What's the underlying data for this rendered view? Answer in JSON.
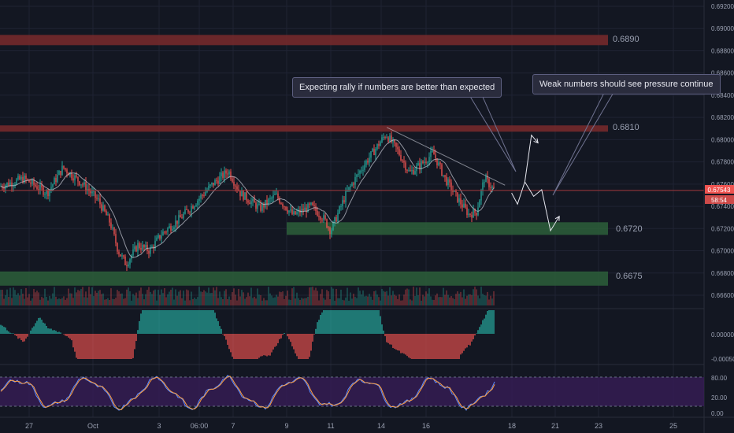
{
  "colors": {
    "background": "#131722",
    "grid": "#1f2333",
    "bull": "#26a69a",
    "bear": "#ef5350",
    "resistance_zone": "#7a2a2c",
    "support_zone": "#2d5f3a",
    "current_price_line": "#a33a3e",
    "stoch_band": "#3a1d5a",
    "stoch_k": "#5b8cff",
    "stoch_d": "#ff9f40"
  },
  "callouts": {
    "rally": "Expecting rally if numbers are better than expected",
    "pressure": "Weak numbers should see pressure continue"
  },
  "levels": {
    "l1": "0.6890",
    "l2": "0.6810",
    "l3": "0.6720",
    "l4": "0.6675"
  },
  "price_scale": [
    "0.69200",
    "0.69000",
    "0.68800",
    "0.68600",
    "0.68400",
    "0.68200",
    "0.68000",
    "0.67800",
    "0.67600",
    "0.67400",
    "0.67200",
    "0.67000",
    "0.66800",
    "0.66600"
  ],
  "last_price": {
    "value": "0.67543",
    "countdown": "58:54"
  },
  "macd_scale": [
    "0.00000",
    "-0.00050"
  ],
  "stoch_scale": [
    "80.00",
    "20.00",
    "0.00"
  ],
  "time_axis": [
    "27",
    "Oct",
    "3",
    "06:00",
    "7",
    "9",
    "11",
    "14",
    "16",
    "18",
    "21",
    "23",
    "25"
  ],
  "chart_data": {
    "type": "candlestick",
    "ylim": [
      0.6655,
      0.693
    ],
    "levels": [
      0.689,
      0.681,
      0.672,
      0.6675
    ],
    "last_price": 0.67543,
    "projection_path": [
      {
        "x_frac": 0.697,
        "y": 0.6752
      },
      {
        "x_frac": 0.705,
        "y": 0.6742
      },
      {
        "x_frac": 0.715,
        "y": 0.6762
      },
      {
        "x_frac": 0.724,
        "y": 0.6804
      },
      {
        "x_frac": 0.733,
        "y": 0.6797
      }
    ],
    "projection_path_2": [
      {
        "x_frac": 0.715,
        "y": 0.6762
      },
      {
        "x_frac": 0.727,
        "y": 0.6749
      },
      {
        "x_frac": 0.738,
        "y": 0.6755
      },
      {
        "x_frac": 0.75,
        "y": 0.6718
      },
      {
        "x_frac": 0.762,
        "y": 0.6731
      }
    ],
    "trendline": [
      {
        "x_frac": 0.527,
        "y": 0.6811
      },
      {
        "x_frac": 0.688,
        "y": 0.6759
      }
    ]
  }
}
